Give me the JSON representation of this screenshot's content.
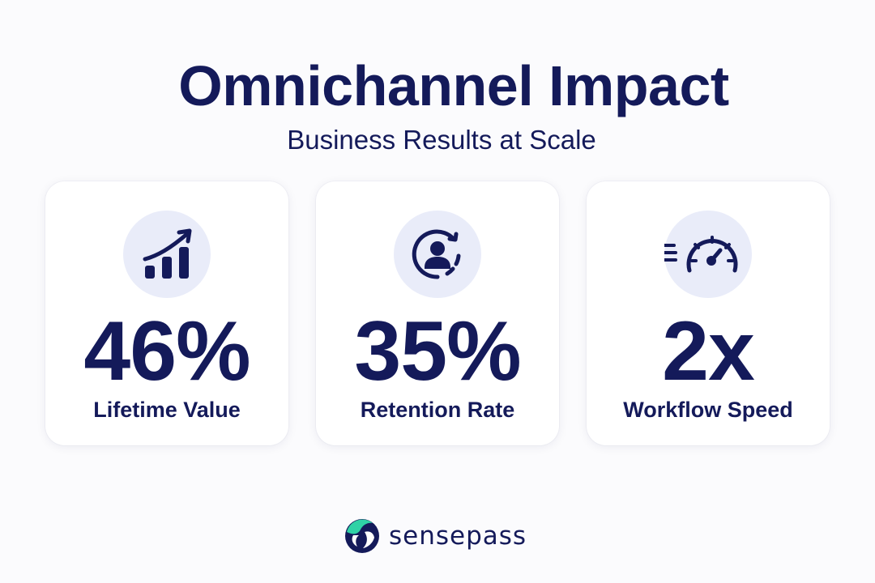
{
  "header": {
    "title": "Omnichannel Impact",
    "subtitle": "Business Results at Scale"
  },
  "metrics": [
    {
      "value": "46%",
      "label": "Lifetime Value",
      "icon": "growth-chart-icon"
    },
    {
      "value": "35%",
      "label": "Retention Rate",
      "icon": "customer-retention-icon"
    },
    {
      "value": "2x",
      "label": "Workflow Speed",
      "icon": "speedometer-icon"
    }
  ],
  "brand": {
    "name": "sensepass",
    "logo_icon": "sensepass-logo-icon"
  },
  "colors": {
    "text": "#141a5a",
    "icon_background": "#e9ecf9",
    "card_background": "#ffffff",
    "page_background": "#fbfbfd",
    "logo_teal": "#2fd2a6",
    "logo_navy": "#141a5a"
  }
}
